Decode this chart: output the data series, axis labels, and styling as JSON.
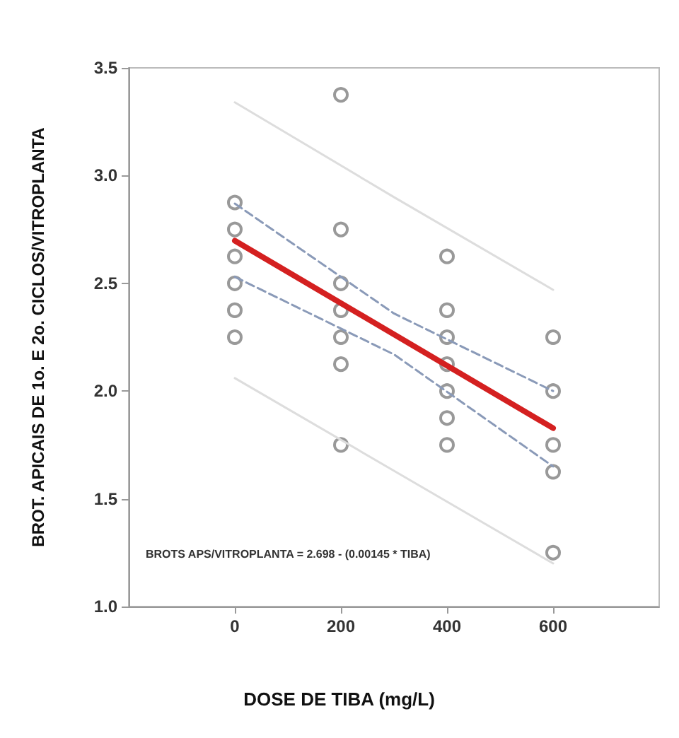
{
  "chart_data": {
    "type": "scatter",
    "xlabel": "DOSE DE TIBA (mg/L)",
    "ylabel": "BROT. APICAIS DE 1o. E 2o. CICLOS/VITROPLANTA",
    "xlim": [
      -200,
      800
    ],
    "xticks": [
      0,
      200,
      400,
      600
    ],
    "ylim": [
      1.0,
      3.5
    ],
    "yticks": [
      {
        "value": 1.0,
        "label": "1.0"
      },
      {
        "value": 1.5,
        "label": "1.5"
      },
      {
        "value": 2.0,
        "label": "2.0"
      },
      {
        "value": 2.5,
        "label": "2.5"
      },
      {
        "value": 3.0,
        "label": "3.0"
      },
      {
        "value": 3.5,
        "label": "3.5"
      }
    ],
    "grid": false,
    "annotations": [
      "BROTS APS/VITROPLANTA = 2.698 - (0.00145 * TIBA)"
    ],
    "series": [
      {
        "marker": "circle",
        "color": "#808080",
        "x": [
          0,
          0,
          0,
          0,
          0,
          0,
          200,
          200,
          200,
          200,
          200,
          200,
          200,
          400,
          400,
          400,
          400,
          400,
          400,
          400,
          600,
          600,
          600,
          600,
          600
        ],
        "values": [
          2.875,
          2.75,
          2.625,
          2.5,
          2.375,
          2.25,
          3.375,
          2.75,
          2.5,
          2.375,
          2.25,
          2.125,
          1.75,
          2.625,
          2.375,
          2.25,
          2.125,
          2.0,
          1.875,
          1.75,
          2.25,
          2.0,
          1.75,
          1.625,
          1.25
        ]
      },
      {
        "type": "line",
        "marker": "none",
        "line_style": "solid",
        "color": "#d42020",
        "x": [
          0,
          600
        ],
        "values": [
          2.698,
          1.828
        ]
      },
      {
        "type": "line",
        "marker": "none",
        "line_style": "dashed",
        "color": "#8a9ab8",
        "x": [
          0,
          300,
          600
        ],
        "values": [
          2.87,
          2.36,
          2.0
        ]
      },
      {
        "type": "line",
        "marker": "none",
        "line_style": "dashed",
        "color": "#8a9ab8",
        "x": [
          0,
          300,
          600
        ],
        "values": [
          2.53,
          2.17,
          1.65
        ]
      },
      {
        "type": "line",
        "marker": "none",
        "line_style": "solid",
        "color": "#dddddd",
        "x": [
          0,
          300,
          600
        ],
        "values": [
          3.34,
          2.9,
          2.47
        ]
      },
      {
        "type": "line",
        "marker": "none",
        "line_style": "solid",
        "color": "#dddddd",
        "x": [
          0,
          300,
          600
        ],
        "values": [
          2.06,
          1.63,
          1.2
        ]
      }
    ]
  }
}
